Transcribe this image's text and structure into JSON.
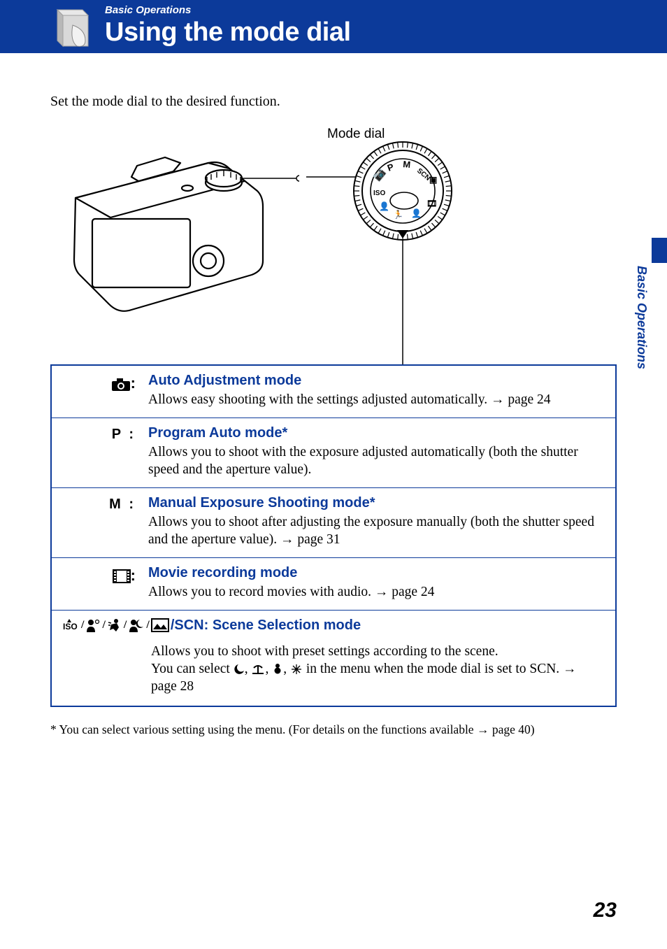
{
  "colors": {
    "brand_blue": "#0c3a9a",
    "background": "#ffffff",
    "text": "#000000"
  },
  "header": {
    "section_label": "Basic Operations",
    "title": "Using the mode dial"
  },
  "intro": "Set the mode dial to the desired function.",
  "diagram": {
    "label": "Mode dial"
  },
  "side_label": "Basic Operations",
  "modes": [
    {
      "icon_symbol": "📷",
      "icon_name": "camera-icon",
      "name": "Auto Adjustment mode",
      "description": "Allows easy shooting with the settings adjusted automatically. → page 24"
    },
    {
      "icon_symbol": "P :",
      "icon_name": "p-mode-icon",
      "name": "Program Auto mode*",
      "description": "Allows you to shoot with the exposure adjusted automatically (both the shutter speed and the aperture value)."
    },
    {
      "icon_symbol": "M :",
      "icon_name": "m-mode-icon",
      "name": "Manual Exposure Shooting mode*",
      "description": "Allows you to shoot after adjusting the exposure manually (both the shutter speed and the aperture value). → page 31"
    },
    {
      "icon_symbol": "🎞",
      "icon_name": "movie-icon",
      "name": "Movie recording mode",
      "description": "Allows you to record movies with audio. → page 24"
    }
  ],
  "scene_mode": {
    "label_suffix": "/SCN: Scene Selection mode",
    "description_line1": "Allows you to shoot with preset settings according to the scene.",
    "description_line2a": "You can select ",
    "description_line2b": " in the menu when the mode dial is set to SCN. → page 28"
  },
  "footnote": "* You can select various setting using the menu. (For details on the functions available → page 40)",
  "page_number": "23"
}
